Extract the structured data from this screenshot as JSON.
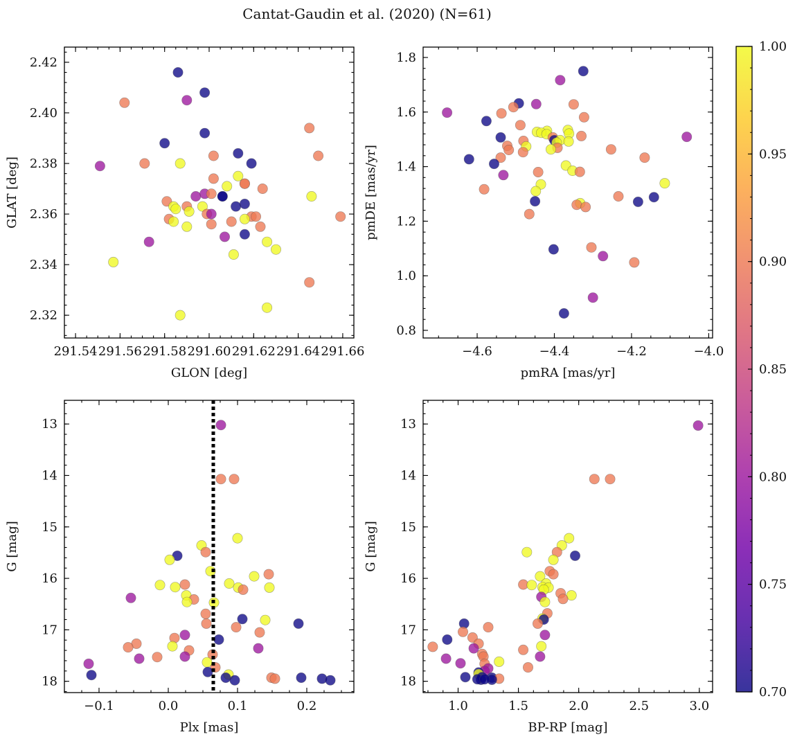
{
  "title": "Cantat-Gaudin et al. (2020) (N=61)",
  "colors": {
    "cmap": [
      "#0d0887",
      "#46039f",
      "#7201a8",
      "#9c179e",
      "#bd3786",
      "#d8576b",
      "#ed7953",
      "#fb9f3a",
      "#fdca26",
      "#f0f921"
    ]
  },
  "colorbar": {
    "label": "",
    "vmin": 0.7,
    "vmax": 1.0,
    "ticks": [
      "0.70",
      "0.75",
      "0.80",
      "0.85",
      "0.90",
      "0.95",
      "1.00"
    ]
  },
  "chart_data": [
    {
      "id": "sky",
      "type": "scatter",
      "xlabel": "GLON [deg]",
      "ylabel": "GLAT [deg]",
      "xlim": [
        291.535,
        291.665
      ],
      "ylim": [
        2.311,
        2.426
      ],
      "yinvert": false,
      "xticks": [
        291.54,
        291.56,
        291.58,
        291.6,
        291.62,
        291.64,
        291.66
      ],
      "xtick_labels": [
        "291.54",
        "291.56",
        "291.58",
        "291.60",
        "291.62",
        "291.64",
        "291.66"
      ],
      "yticks": [
        2.32,
        2.34,
        2.36,
        2.38,
        2.4,
        2.42
      ],
      "ytick_labels": [
        "2.32",
        "2.34",
        "2.36",
        "2.38",
        "2.40",
        "2.42"
      ],
      "points": [
        [
          291.586,
          2.416,
          0.7
        ],
        [
          291.598,
          2.408,
          0.7
        ],
        [
          291.59,
          2.405,
          0.8
        ],
        [
          291.562,
          2.404,
          0.9
        ],
        [
          291.645,
          2.394,
          0.9
        ],
        [
          291.598,
          2.392,
          0.7
        ],
        [
          291.58,
          2.388,
          0.7
        ],
        [
          291.613,
          2.384,
          0.7
        ],
        [
          291.649,
          2.383,
          0.9
        ],
        [
          291.602,
          2.383,
          0.9
        ],
        [
          291.619,
          2.38,
          0.7
        ],
        [
          291.571,
          2.38,
          0.9
        ],
        [
          291.551,
          2.379,
          0.8
        ],
        [
          291.587,
          2.38,
          1.0
        ],
        [
          291.613,
          2.375,
          1.0
        ],
        [
          291.602,
          2.374,
          0.9
        ],
        [
          291.616,
          2.372,
          0.9
        ],
        [
          291.608,
          2.371,
          1.0
        ],
        [
          291.624,
          2.37,
          0.9
        ],
        [
          291.616,
          2.372,
          0.9
        ],
        [
          291.598,
          2.368,
          0.8
        ],
        [
          291.601,
          2.368,
          0.9
        ],
        [
          291.594,
          2.367,
          0.8
        ],
        [
          291.606,
          2.367,
          0.7
        ],
        [
          291.646,
          2.367,
          1.0
        ],
        [
          291.606,
          2.367,
          0.7
        ],
        [
          291.581,
          2.365,
          0.9
        ],
        [
          291.616,
          2.364,
          0.7
        ],
        [
          291.612,
          2.363,
          0.7
        ],
        [
          291.597,
          2.363,
          1.0
        ],
        [
          291.584,
          2.363,
          1.0
        ],
        [
          291.59,
          2.363,
          0.9
        ],
        [
          291.585,
          2.362,
          1.0
        ],
        [
          291.591,
          2.361,
          1.0
        ],
        [
          291.599,
          2.36,
          0.9
        ],
        [
          291.601,
          2.36,
          0.8
        ],
        [
          291.659,
          2.359,
          0.9
        ],
        [
          291.619,
          2.359,
          0.9
        ],
        [
          291.621,
          2.359,
          0.9
        ],
        [
          291.582,
          2.358,
          0.9
        ],
        [
          291.584,
          2.357,
          1.0
        ],
        [
          291.616,
          2.358,
          1.0
        ],
        [
          291.61,
          2.357,
          0.9
        ],
        [
          291.601,
          2.356,
          0.9
        ],
        [
          291.623,
          2.355,
          0.9
        ],
        [
          291.59,
          2.355,
          1.0
        ],
        [
          291.616,
          2.352,
          0.7
        ],
        [
          291.607,
          2.351,
          0.8
        ],
        [
          291.573,
          2.349,
          0.8
        ],
        [
          291.626,
          2.349,
          1.0
        ],
        [
          291.63,
          2.346,
          1.0
        ],
        [
          291.611,
          2.344,
          1.0
        ],
        [
          291.557,
          2.341,
          1.0
        ],
        [
          291.645,
          2.333,
          0.9
        ],
        [
          291.626,
          2.323,
          1.0
        ],
        [
          291.587,
          2.32,
          1.0
        ]
      ]
    },
    {
      "id": "pm",
      "type": "scatter",
      "xlabel": "pmRA [mas/yr]",
      "ylabel": "pmDE [mas/yr]",
      "xlim": [
        -4.74,
        -3.99
      ],
      "ylim": [
        0.772,
        1.838
      ],
      "yinvert": false,
      "xticks": [
        -4.6,
        -4.4,
        -4.2,
        -4.0
      ],
      "xtick_labels": [
        "−4.6",
        "−4.4",
        "−4.2",
        "−4.0"
      ],
      "yticks": [
        0.8,
        1.0,
        1.2,
        1.4,
        1.6,
        1.8
      ],
      "ytick_labels": [
        "0.8",
        "1.0",
        "1.2",
        "1.4",
        "1.6",
        "1.8"
      ],
      "points": [
        [
          -4.325,
          1.75,
          0.7
        ],
        [
          -4.385,
          1.717,
          0.8
        ],
        [
          -4.492,
          1.632,
          0.7
        ],
        [
          -4.447,
          1.629,
          0.8
        ],
        [
          -4.35,
          1.628,
          0.9
        ],
        [
          -4.506,
          1.618,
          0.9
        ],
        [
          -4.678,
          1.598,
          0.8
        ],
        [
          -4.537,
          1.595,
          0.9
        ],
        [
          -4.323,
          1.581,
          0.9
        ],
        [
          -4.576,
          1.567,
          0.7
        ],
        [
          -4.488,
          1.552,
          0.9
        ],
        [
          -4.365,
          1.534,
          1.0
        ],
        [
          -4.445,
          1.527,
          1.0
        ],
        [
          -4.419,
          1.531,
          1.0
        ],
        [
          -4.362,
          1.521,
          1.0
        ],
        [
          -4.434,
          1.524,
          1.0
        ],
        [
          -4.42,
          1.519,
          1.0
        ],
        [
          -4.404,
          1.507,
          0.9
        ],
        [
          -4.33,
          1.512,
          0.9
        ],
        [
          -4.539,
          1.507,
          0.7
        ],
        [
          -4.057,
          1.509,
          0.8
        ],
        [
          -4.4,
          1.497,
          0.7
        ],
        [
          -4.385,
          1.497,
          1.0
        ],
        [
          -4.363,
          1.492,
          1.0
        ],
        [
          -4.48,
          1.494,
          0.9
        ],
        [
          -4.394,
          1.488,
          1.0
        ],
        [
          -4.522,
          1.476,
          0.9
        ],
        [
          -4.473,
          1.474,
          1.0
        ],
        [
          -4.392,
          1.469,
          0.9
        ],
        [
          -4.409,
          1.463,
          1.0
        ],
        [
          -4.253,
          1.463,
          0.9
        ],
        [
          -4.518,
          1.461,
          0.9
        ],
        [
          -4.481,
          1.453,
          0.9
        ],
        [
          -4.539,
          1.433,
          0.9
        ],
        [
          -4.166,
          1.433,
          0.9
        ],
        [
          -4.621,
          1.427,
          0.7
        ],
        [
          -4.556,
          1.41,
          0.7
        ],
        [
          -4.37,
          1.404,
          1.0
        ],
        [
          -4.353,
          1.385,
          1.0
        ],
        [
          -4.442,
          1.38,
          0.9
        ],
        [
          -4.334,
          1.381,
          0.9
        ],
        [
          -4.532,
          1.369,
          0.8
        ],
        [
          -4.114,
          1.339,
          1.0
        ],
        [
          -4.435,
          1.335,
          1.0
        ],
        [
          -4.582,
          1.317,
          0.9
        ],
        [
          -4.448,
          1.31,
          1.0
        ],
        [
          -4.234,
          1.291,
          0.9
        ],
        [
          -4.142,
          1.288,
          0.7
        ],
        [
          -4.45,
          1.273,
          0.7
        ],
        [
          -4.183,
          1.271,
          0.7
        ],
        [
          -4.333,
          1.266,
          1.0
        ],
        [
          -4.342,
          1.26,
          0.9
        ],
        [
          -4.319,
          1.252,
          0.9
        ],
        [
          -4.465,
          1.226,
          0.9
        ],
        [
          -4.402,
          1.097,
          0.7
        ],
        [
          -4.304,
          1.104,
          0.9
        ],
        [
          -4.274,
          1.072,
          0.8
        ],
        [
          -4.193,
          1.049,
          0.9
        ],
        [
          -4.3,
          0.92,
          0.8
        ],
        [
          -4.375,
          0.862,
          0.7
        ]
      ]
    },
    {
      "id": "plx",
      "type": "scatter",
      "xlabel": "Plx [mas]",
      "ylabel": "G [mag]",
      "xlim": [
        -0.15,
        0.268
      ],
      "ylim": [
        12.54,
        18.22
      ],
      "yinvert": true,
      "vline": 0.065,
      "xticks": [
        -0.1,
        0.0,
        0.1,
        0.2
      ],
      "xtick_labels": [
        "−0.1",
        "0.0",
        "0.1",
        "0.2"
      ],
      "yticks": [
        13,
        14,
        15,
        16,
        17,
        18
      ],
      "ytick_labels": [
        "13",
        "14",
        "15",
        "16",
        "17",
        "18"
      ],
      "points": [
        [
          0.076,
          13.02,
          0.8
        ],
        [
          0.076,
          14.07,
          0.9
        ],
        [
          0.095,
          14.07,
          0.9
        ],
        [
          0.1,
          15.22,
          1.0
        ],
        [
          0.048,
          15.36,
          1.0
        ],
        [
          0.054,
          15.49,
          0.9
        ],
        [
          0.013,
          15.56,
          0.7
        ],
        [
          0.002,
          15.64,
          1.0
        ],
        [
          0.061,
          15.86,
          1.0
        ],
        [
          0.145,
          15.92,
          0.9
        ],
        [
          0.124,
          15.96,
          1.0
        ],
        [
          0.088,
          16.1,
          1.0
        ],
        [
          0.024,
          16.12,
          0.9
        ],
        [
          -0.012,
          16.13,
          1.0
        ],
        [
          0.01,
          16.17,
          1.0
        ],
        [
          0.101,
          16.18,
          1.0
        ],
        [
          0.146,
          16.18,
          1.0
        ],
        [
          0.108,
          16.22,
          0.9
        ],
        [
          0.026,
          16.33,
          1.0
        ],
        [
          -0.054,
          16.38,
          0.8
        ],
        [
          0.037,
          16.41,
          0.9
        ],
        [
          0.027,
          16.46,
          1.0
        ],
        [
          0.066,
          16.47,
          1.0
        ],
        [
          0.054,
          16.69,
          0.9
        ],
        [
          0.107,
          16.79,
          0.7
        ],
        [
          0.14,
          16.81,
          1.0
        ],
        [
          0.055,
          16.88,
          0.9
        ],
        [
          0.188,
          16.88,
          0.7
        ],
        [
          0.098,
          16.95,
          0.9
        ],
        [
          0.132,
          17.05,
          0.9
        ],
        [
          0.024,
          17.1,
          0.8
        ],
        [
          0.009,
          17.16,
          0.9
        ],
        [
          0.073,
          17.19,
          0.7
        ],
        [
          0.006,
          17.32,
          1.0
        ],
        [
          -0.046,
          17.27,
          0.9
        ],
        [
          0.13,
          17.36,
          0.8
        ],
        [
          -0.058,
          17.34,
          0.9
        ],
        [
          0.03,
          17.4,
          0.9
        ],
        [
          0.064,
          17.48,
          0.9
        ],
        [
          0.024,
          17.52,
          0.8
        ],
        [
          -0.016,
          17.53,
          0.9
        ],
        [
          -0.042,
          17.56,
          0.8
        ],
        [
          0.056,
          17.63,
          1.0
        ],
        [
          -0.115,
          17.66,
          0.8
        ],
        [
          0.068,
          17.73,
          0.9
        ],
        [
          0.057,
          17.82,
          0.7
        ],
        [
          0.087,
          17.87,
          1.0
        ],
        [
          -0.111,
          17.88,
          0.7
        ],
        [
          0.083,
          17.93,
          0.7
        ],
        [
          0.149,
          17.93,
          0.9
        ],
        [
          0.154,
          17.95,
          0.9
        ],
        [
          0.192,
          17.93,
          0.7
        ],
        [
          0.222,
          17.95,
          0.7
        ],
        [
          0.234,
          17.98,
          0.7
        ],
        [
          0.096,
          17.98,
          0.7
        ]
      ]
    },
    {
      "id": "cmd",
      "type": "scatter",
      "xlabel": "BP-RP [mag]",
      "ylabel": "G [mag]",
      "xlim": [
        0.71,
        3.11
      ],
      "ylim": [
        12.54,
        18.22
      ],
      "yinvert": true,
      "xticks": [
        1.0,
        1.5,
        2.0,
        2.5,
        3.0
      ],
      "xtick_labels": [
        "1.0",
        "1.5",
        "2.0",
        "2.5",
        "3.0"
      ],
      "yticks": [
        13,
        14,
        15,
        16,
        17,
        18
      ],
      "ytick_labels": [
        "13",
        "14",
        "15",
        "16",
        "17",
        "18"
      ],
      "points": [
        [
          2.99,
          13.03,
          0.8
        ],
        [
          2.13,
          14.07,
          0.9
        ],
        [
          2.26,
          14.07,
          0.9
        ],
        [
          1.92,
          15.22,
          1.0
        ],
        [
          1.86,
          15.36,
          1.0
        ],
        [
          1.57,
          15.49,
          1.0
        ],
        [
          1.82,
          15.49,
          0.9
        ],
        [
          1.97,
          15.56,
          0.7
        ],
        [
          1.79,
          15.64,
          1.0
        ],
        [
          1.76,
          15.86,
          0.9
        ],
        [
          1.79,
          15.92,
          0.9
        ],
        [
          1.68,
          15.96,
          1.0
        ],
        [
          1.73,
          16.1,
          1.0
        ],
        [
          1.54,
          16.12,
          0.9
        ],
        [
          1.61,
          16.13,
          1.0
        ],
        [
          1.7,
          16.17,
          1.0
        ],
        [
          1.75,
          16.18,
          1.0
        ],
        [
          1.71,
          16.22,
          1.0
        ],
        [
          1.85,
          16.29,
          0.9
        ],
        [
          1.94,
          16.33,
          1.0
        ],
        [
          1.69,
          16.36,
          0.8
        ],
        [
          1.87,
          16.4,
          0.9
        ],
        [
          1.72,
          16.46,
          1.0
        ],
        [
          1.74,
          16.68,
          0.9
        ],
        [
          1.7,
          16.78,
          1.0
        ],
        [
          1.71,
          16.8,
          0.7
        ],
        [
          1.66,
          16.88,
          0.9
        ],
        [
          1.05,
          16.88,
          0.7
        ],
        [
          1.25,
          16.95,
          0.9
        ],
        [
          1.04,
          17.04,
          0.9
        ],
        [
          1.72,
          17.1,
          0.8
        ],
        [
          1.12,
          17.15,
          0.9
        ],
        [
          0.91,
          17.19,
          0.7
        ],
        [
          1.17,
          17.27,
          0.9
        ],
        [
          1.69,
          17.32,
          1.0
        ],
        [
          0.79,
          17.33,
          0.9
        ],
        [
          1.13,
          17.36,
          0.8
        ],
        [
          1.54,
          17.39,
          0.9
        ],
        [
          1.2,
          17.47,
          0.9
        ],
        [
          1.21,
          17.52,
          0.9
        ],
        [
          1.68,
          17.52,
          0.8
        ],
        [
          0.9,
          17.56,
          0.8
        ],
        [
          1.34,
          17.62,
          1.0
        ],
        [
          1.02,
          17.65,
          0.8
        ],
        [
          1.22,
          17.66,
          0.9
        ],
        [
          1.58,
          17.73,
          0.9
        ],
        [
          1.25,
          17.75,
          0.8
        ],
        [
          1.22,
          17.8,
          0.8
        ],
        [
          1.17,
          17.83,
          0.7
        ],
        [
          1.17,
          17.86,
          1.0
        ],
        [
          1.06,
          17.92,
          0.7
        ],
        [
          1.2,
          17.92,
          0.7
        ],
        [
          1.28,
          17.93,
          0.7
        ],
        [
          1.34,
          17.95,
          0.9
        ],
        [
          1.19,
          17.97,
          0.7
        ],
        [
          1.16,
          17.96,
          0.7
        ],
        [
          1.28,
          17.97,
          0.7
        ],
        [
          1.22,
          17.96,
          0.7
        ]
      ]
    }
  ]
}
